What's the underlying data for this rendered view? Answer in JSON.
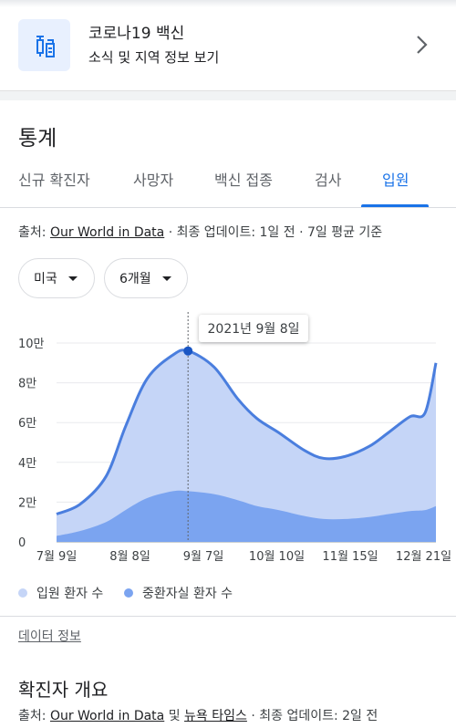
{
  "vaccine_card": {
    "title": "코로나19 백신",
    "subtitle": "소식 및 지역 정보 보기",
    "icon": "vaccine-icon"
  },
  "stats": {
    "title": "통계",
    "tabs": [
      {
        "label": "신규 확진자",
        "active": false
      },
      {
        "label": "사망자",
        "active": false
      },
      {
        "label": "백신 접종",
        "active": false
      },
      {
        "label": "검사",
        "active": false
      },
      {
        "label": "입원",
        "active": true
      }
    ],
    "source_prefix": "출처: ",
    "source_link": "Our World in Data",
    "source_suffix": " · 최종 업데이트: 1일 전 · 7일 평균 기준",
    "region_select": "미국",
    "period_select": "6개월",
    "tooltip": "2021년 9월 8일",
    "legend": [
      {
        "label": "입원 환자 수",
        "color": "#c5d5f7"
      },
      {
        "label": "중환자실 환자 수",
        "color": "#7ba4f0"
      }
    ],
    "data_info": "데이터 정보"
  },
  "chart_data": {
    "type": "area",
    "y_ticks": [
      "0",
      "2만",
      "4만",
      "6만",
      "8만",
      "10만"
    ],
    "ylim": [
      0,
      100000
    ],
    "x_ticks": [
      "7월 9일",
      "8월 8일",
      "9월 7일",
      "10월 10일",
      "11월 15일",
      "12월 21일"
    ],
    "x": [
      "2021-07-09",
      "2021-07-20",
      "2021-08-01",
      "2021-08-10",
      "2021-08-20",
      "2021-09-01",
      "2021-09-08",
      "2021-09-20",
      "2021-10-01",
      "2021-10-10",
      "2021-10-20",
      "2021-11-01",
      "2021-11-10",
      "2021-11-20",
      "2021-12-01",
      "2021-12-10",
      "2021-12-20",
      "2021-12-27",
      "2022-01-01"
    ],
    "series": [
      {
        "name": "입원 환자 수",
        "color": "#c5d5f7",
        "line": "#4a7ede",
        "values": [
          14000,
          19000,
          33000,
          58000,
          82000,
          94000,
          96000,
          88000,
          72000,
          62000,
          55000,
          46000,
          42000,
          43000,
          48000,
          55000,
          63000,
          65000,
          90000
        ]
      },
      {
        "name": "중환자실 환자 수",
        "color": "#7ba4f0",
        "values": [
          3000,
          5500,
          10000,
          16000,
          22000,
          25500,
          25500,
          24000,
          21000,
          18000,
          16000,
          13000,
          11500,
          11500,
          12500,
          14000,
          15500,
          16000,
          18000
        ]
      }
    ],
    "highlight_date": "2021-09-08",
    "grid": true
  },
  "overview": {
    "title": "확진자 개요",
    "source_prefix": "출처: ",
    "source_link1": "Our World in Data",
    "source_mid": " 및 ",
    "source_link2": "뉴욕 타임스",
    "source_suffix": " · 최종 업데이트: 2일 전"
  }
}
